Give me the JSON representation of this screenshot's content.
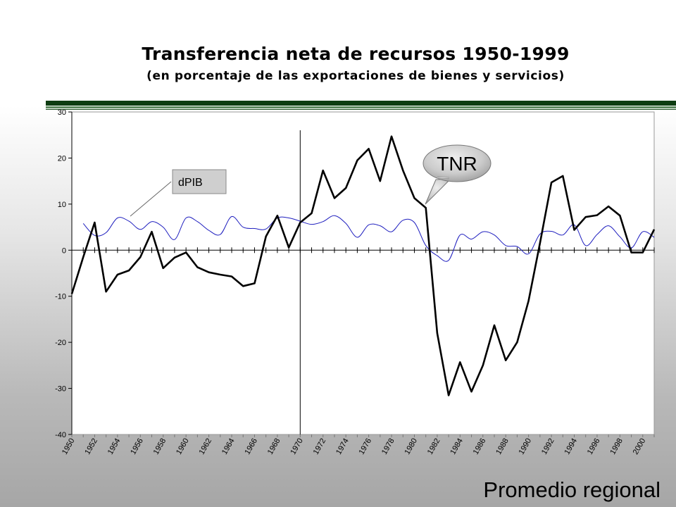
{
  "page": {
    "title": "Transferencia neta de recursos 1950-1999",
    "subtitle": "(en porcentaje de las exportaciones de bienes y servicios)",
    "footer": "Promedio regional"
  },
  "annotations": {
    "dpib_label": "dPIB",
    "tnr_label": "TNR"
  },
  "colors": {
    "tnr_line": "#000000",
    "dpib_line": "#1f1fbf",
    "header_bar": "#0e3d12"
  },
  "chart_data": {
    "type": "line",
    "title": "Transferencia neta de recursos 1950-1999",
    "subtitle": "(en porcentaje de las exportaciones de bienes y servicios)",
    "xlabel": "",
    "ylabel": "",
    "ylim": [
      -40,
      30
    ],
    "yticks": [
      30,
      20,
      10,
      0,
      -10,
      -20,
      -30,
      -40
    ],
    "xlim": [
      1950,
      2001
    ],
    "xticks": [
      "1950",
      "1952",
      "1954",
      "1956",
      "1958",
      "1960",
      "1962",
      "1964",
      "1966",
      "1968",
      "1970",
      "1972",
      "1974",
      "1976",
      "1978",
      "1980",
      "1982",
      "1984",
      "1986",
      "1988",
      "1990",
      "1992",
      "1994",
      "1996",
      "1998",
      "2000"
    ],
    "reference_line_x": 1970,
    "grid": false,
    "series": [
      {
        "name": "TNR",
        "x": [
          1950,
          1951,
          1952,
          1953,
          1954,
          1955,
          1956,
          1957,
          1958,
          1959,
          1960,
          1961,
          1962,
          1963,
          1964,
          1965,
          1966,
          1967,
          1968,
          1969,
          1970,
          1971,
          1972,
          1973,
          1974,
          1975,
          1976,
          1977,
          1978,
          1979,
          1980,
          1981,
          1982,
          1983,
          1984,
          1985,
          1986,
          1987,
          1988,
          1989,
          1990,
          1991,
          1992,
          1993,
          1994,
          1995,
          1996,
          1997,
          1998,
          1999,
          2000,
          2001
        ],
        "values": [
          -9.5,
          -1.5,
          6,
          -9,
          -5.3,
          -4.4,
          -1.5,
          4,
          -3.9,
          -1.6,
          -0.5,
          -3.7,
          -4.8,
          -5.3,
          -5.7,
          -7.8,
          -7.2,
          3,
          7.5,
          0.6,
          6,
          8,
          17.3,
          11.3,
          13.5,
          19.5,
          22,
          15,
          24.7,
          17.3,
          11.3,
          9.2,
          -18,
          -31.5,
          -24.3,
          -30.7,
          -25,
          -16.3,
          -23.9,
          -20,
          -11,
          1.5,
          14.7,
          16.1,
          4.4,
          7.2,
          7.6,
          9.5,
          7.5,
          -0.5,
          -0.5,
          4.5
        ]
      },
      {
        "name": "dPIB",
        "x": [
          1951,
          1952,
          1953,
          1954,
          1955,
          1956,
          1957,
          1958,
          1959,
          1960,
          1961,
          1962,
          1963,
          1964,
          1965,
          1966,
          1967,
          1968,
          1969,
          1970,
          1971,
          1972,
          1973,
          1974,
          1975,
          1976,
          1977,
          1978,
          1979,
          1980,
          1981,
          1982,
          1983,
          1984,
          1985,
          1986,
          1987,
          1988,
          1989,
          1990,
          1991,
          1992,
          1993,
          1994,
          1995,
          1996,
          1997,
          1998,
          1999,
          2000,
          2001
        ],
        "values": [
          5.8,
          3.2,
          3.8,
          7,
          6.3,
          4.5,
          6.2,
          5,
          2.3,
          7,
          6.2,
          4.3,
          3.4,
          7.3,
          5,
          4.7,
          4.6,
          7,
          7,
          6.3,
          5.6,
          6.2,
          7.5,
          5.8,
          2.8,
          5.5,
          5.3,
          4,
          6.5,
          6,
          1,
          -1.2,
          -2.2,
          3.3,
          2.4,
          4,
          3.3,
          1,
          0.8,
          -0.8,
          3.5,
          4.1,
          3.3,
          5.5,
          1,
          3.4,
          5.3,
          2.9,
          0.5,
          4,
          2.8
        ]
      }
    ]
  }
}
